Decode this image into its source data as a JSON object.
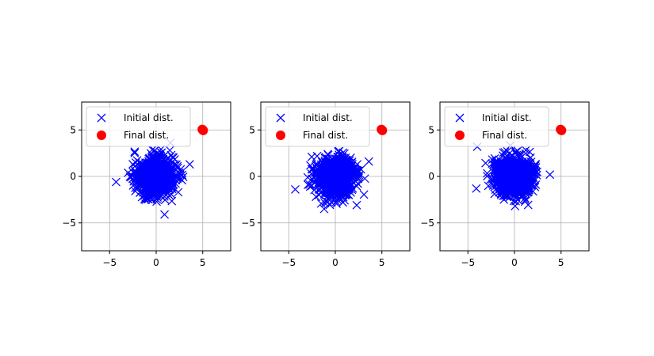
{
  "chart_data": [
    {
      "type": "scatter",
      "xlim": [
        -8,
        8
      ],
      "ylim": [
        -8,
        8
      ],
      "xticks": [
        -5,
        0,
        5
      ],
      "yticks": [
        -5,
        0,
        5
      ],
      "xtick_labels": [
        "−5",
        "0",
        "5"
      ],
      "ytick_labels": [
        "−5",
        "0",
        "5"
      ],
      "grid": true,
      "legend": "upper-left",
      "series": [
        {
          "name": "Initial dist.",
          "marker": "x",
          "color": "#0000ff",
          "distribution": {
            "center": [
              0,
              0
            ],
            "std": 1.0,
            "count": 1000,
            "seed": 11
          },
          "extra_points": [
            [
              -4.3,
              -0.6
            ],
            [
              3.6,
              1.3
            ],
            [
              0.9,
              -4.1
            ]
          ]
        },
        {
          "name": "Final dist.",
          "marker": "o",
          "color": "#ff0000",
          "points": [
            [
              5,
              5
            ],
            [
              5.05,
              4.95
            ],
            [
              4.95,
              5.05
            ]
          ]
        }
      ]
    },
    {
      "type": "scatter",
      "xlim": [
        -8,
        8
      ],
      "ylim": [
        -8,
        8
      ],
      "xticks": [
        -5,
        0,
        5
      ],
      "yticks": [
        -5,
        0,
        5
      ],
      "xtick_labels": [
        "−5",
        "0",
        "5"
      ],
      "ytick_labels": [
        "−5",
        "0",
        "5"
      ],
      "grid": true,
      "legend": "upper-left",
      "series": [
        {
          "name": "Initial dist.",
          "marker": "x",
          "color": "#0000ff",
          "distribution": {
            "center": [
              0,
              0
            ],
            "std": 1.0,
            "count": 1000,
            "seed": 23
          },
          "extra_points": [
            [
              -4.3,
              -1.4
            ],
            [
              3.6,
              1.6
            ],
            [
              -1.2,
              -3.5
            ]
          ]
        },
        {
          "name": "Final dist.",
          "marker": "o",
          "color": "#ff0000",
          "points": [
            [
              5,
              5
            ],
            [
              5.05,
              4.95
            ],
            [
              4.95,
              5.05
            ]
          ]
        }
      ]
    },
    {
      "type": "scatter",
      "xlim": [
        -8,
        8
      ],
      "ylim": [
        -8,
        8
      ],
      "xticks": [
        -5,
        0,
        5
      ],
      "yticks": [
        -5,
        0,
        5
      ],
      "xtick_labels": [
        "−5",
        "0",
        "5"
      ],
      "ytick_labels": [
        "−5",
        "0",
        "5"
      ],
      "grid": true,
      "legend": "upper-left",
      "series": [
        {
          "name": "Initial dist.",
          "marker": "x",
          "color": "#0000ff",
          "distribution": {
            "center": [
              0,
              0
            ],
            "std": 1.0,
            "count": 1000,
            "seed": 37
          },
          "extra_points": [
            [
              -4.0,
              3.2
            ],
            [
              -4.1,
              -1.3
            ],
            [
              3.8,
              0.2
            ]
          ]
        },
        {
          "name": "Final dist.",
          "marker": "o",
          "color": "#ff0000",
          "points": [
            [
              5,
              5
            ],
            [
              5.05,
              4.95
            ],
            [
              4.95,
              5.05
            ]
          ]
        }
      ]
    }
  ]
}
